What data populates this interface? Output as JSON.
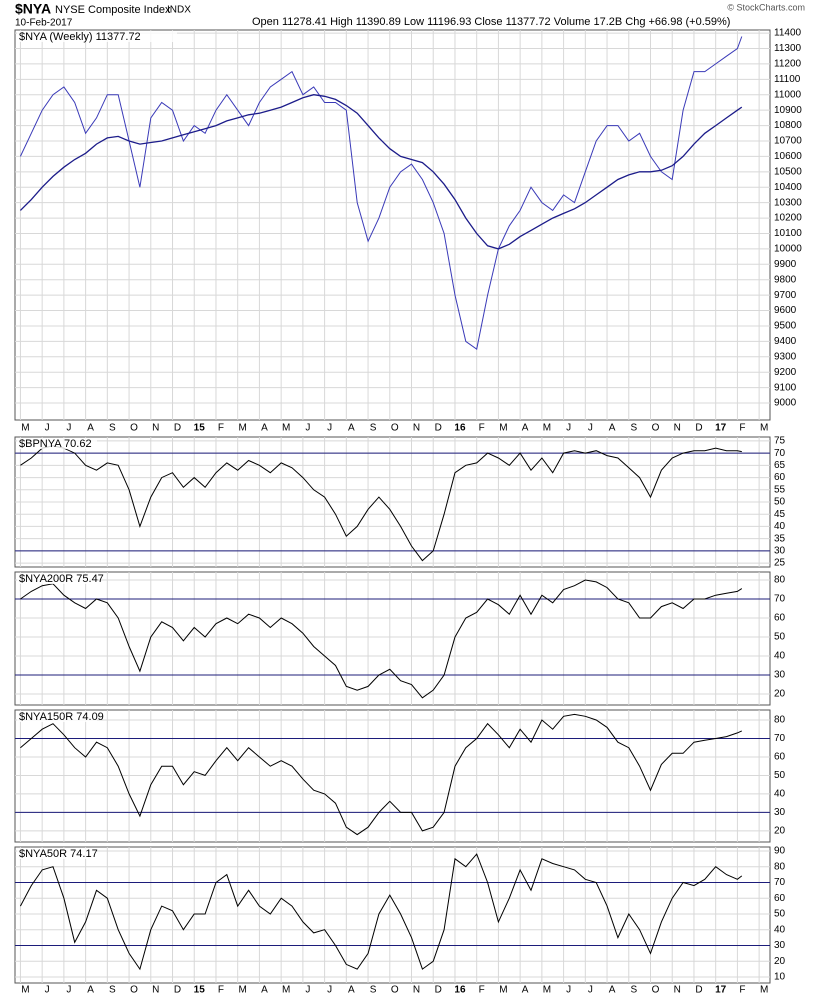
{
  "header": {
    "symbol": "$NYA",
    "name": "NYSE Composite Index",
    "exchange": "INDX",
    "date": "10-Feb-2017",
    "quote": "Open 11278.41  High 11390.89  Low 11196.93  Close 11377.72  Volume 17.2B  Chg +66.98 (+0.59%)",
    "credit": "© StockCharts.com"
  },
  "chart_data": [
    {
      "type": "line",
      "title": "$NYA (Weekly) 11377.72",
      "x": [
        0,
        0.5,
        1,
        1.5,
        2,
        2.5,
        3,
        3.5,
        4,
        4.5,
        5,
        5.5,
        6,
        6.5,
        7,
        7.5,
        8,
        8.5,
        9,
        9.5,
        10,
        10.5,
        11,
        11.5,
        12,
        12.5,
        13,
        13.5,
        14,
        14.5,
        15,
        15.5,
        16,
        16.5,
        17,
        17.5,
        18,
        18.5,
        19,
        19.5,
        20,
        20.5,
        21,
        21.5,
        22,
        22.5,
        23,
        23.5,
        24,
        24.5,
        25,
        25.5,
        26,
        26.5,
        27,
        27.5,
        28,
        28.5,
        29,
        29.5,
        30,
        30.5,
        31,
        31.5,
        32,
        32.5,
        33,
        33.2
      ],
      "series": [
        {
          "name": "Close",
          "color": "#3a3ab8",
          "values": [
            10600,
            10750,
            10900,
            11000,
            11050,
            10950,
            10750,
            10850,
            11000,
            11000,
            10700,
            10400,
            10850,
            10950,
            10900,
            10700,
            10800,
            10750,
            10900,
            11000,
            10900,
            10800,
            10950,
            11050,
            11100,
            11150,
            11000,
            11050,
            10950,
            10950,
            10900,
            10300,
            10050,
            10200,
            10400,
            10500,
            10550,
            10450,
            10300,
            10100,
            9700,
            9400,
            9350,
            9700,
            10000,
            10150,
            10250,
            10400,
            10300,
            10250,
            10350,
            10300,
            10500,
            10700,
            10800,
            10800,
            10700,
            10750,
            10600,
            10500,
            10450,
            10900,
            11150,
            11150,
            11200,
            11250,
            11300,
            11377.72
          ]
        },
        {
          "name": "MA(40)",
          "color": "#1c1c8a",
          "values": [
            10250,
            10320,
            10400,
            10470,
            10530,
            10580,
            10620,
            10680,
            10720,
            10730,
            10700,
            10680,
            10690,
            10700,
            10720,
            10740,
            10760,
            10780,
            10800,
            10830,
            10850,
            10870,
            10880,
            10900,
            10920,
            10950,
            10980,
            11000,
            10990,
            10970,
            10930,
            10880,
            10800,
            10720,
            10650,
            10600,
            10580,
            10560,
            10500,
            10420,
            10320,
            10200,
            10100,
            10020,
            10000,
            10030,
            10080,
            10120,
            10160,
            10200,
            10230,
            10260,
            10300,
            10350,
            10400,
            10450,
            10480,
            10500,
            10500,
            10510,
            10540,
            10600,
            10680,
            10750,
            10800,
            10850,
            10900,
            10920
          ]
        }
      ],
      "xlim": [
        -0.25,
        34.5
      ],
      "ylim": [
        8890,
        11420
      ],
      "yticks": [
        9000,
        9100,
        9200,
        9300,
        9400,
        9500,
        9600,
        9700,
        9800,
        9900,
        10000,
        10100,
        10200,
        10300,
        10400,
        10500,
        10600,
        10700,
        10800,
        10900,
        11000,
        11100,
        11200,
        11300,
        11400
      ],
      "xticks": [
        {
          "value": 0,
          "label": "M"
        },
        {
          "value": 1,
          "label": "J"
        },
        {
          "value": 2,
          "label": "J"
        },
        {
          "value": 3,
          "label": "A"
        },
        {
          "value": 4,
          "label": "S"
        },
        {
          "value": 5,
          "label": "O"
        },
        {
          "value": 6,
          "label": "N"
        },
        {
          "value": 7,
          "label": "D"
        },
        {
          "value": 8,
          "label": "15"
        },
        {
          "value": 9,
          "label": "F"
        },
        {
          "value": 10,
          "label": "M"
        },
        {
          "value": 11,
          "label": "A"
        },
        {
          "value": 12,
          "label": "M"
        },
        {
          "value": 13,
          "label": "J"
        },
        {
          "value": 14,
          "label": "J"
        },
        {
          "value": 15,
          "label": "A"
        },
        {
          "value": 16,
          "label": "S"
        },
        {
          "value": 17,
          "label": "O"
        },
        {
          "value": 18,
          "label": "N"
        },
        {
          "value": 19,
          "label": "D"
        },
        {
          "value": 20,
          "label": "16"
        },
        {
          "value": 21,
          "label": "F"
        },
        {
          "value": 22,
          "label": "M"
        },
        {
          "value": 23,
          "label": "A"
        },
        {
          "value": 24,
          "label": "M"
        },
        {
          "value": 25,
          "label": "J"
        },
        {
          "value": 26,
          "label": "J"
        },
        {
          "value": 27,
          "label": "A"
        },
        {
          "value": 28,
          "label": "S"
        },
        {
          "value": 29,
          "label": "O"
        },
        {
          "value": 30,
          "label": "N"
        },
        {
          "value": 31,
          "label": "D"
        },
        {
          "value": 32,
          "label": "17"
        },
        {
          "value": 33,
          "label": "F"
        },
        {
          "value": 34,
          "label": "M"
        }
      ],
      "grid": true
    },
    {
      "type": "line",
      "title": "$BPNYA 70.62",
      "x": [
        0,
        0.5,
        1,
        1.5,
        2,
        2.5,
        3,
        3.5,
        4,
        4.5,
        5,
        5.5,
        6,
        6.5,
        7,
        7.5,
        8,
        8.5,
        9,
        9.5,
        10,
        10.5,
        11,
        11.5,
        12,
        12.5,
        13,
        13.5,
        14,
        14.5,
        15,
        15.5,
        16,
        16.5,
        17,
        17.5,
        18,
        18.5,
        19,
        19.5,
        20,
        20.5,
        21,
        21.5,
        22,
        22.5,
        23,
        23.5,
        24,
        24.5,
        25,
        25.5,
        26,
        26.5,
        27,
        27.5,
        28,
        28.5,
        29,
        29.5,
        30,
        30.5,
        31,
        31.5,
        32,
        32.5,
        33,
        33.2
      ],
      "series": [
        {
          "name": "$BPNYA",
          "color": "#000000",
          "values": [
            65,
            68,
            72,
            73,
            72,
            70,
            65,
            63,
            66,
            65,
            55,
            40,
            52,
            60,
            62,
            56,
            60,
            56,
            62,
            66,
            63,
            67,
            65,
            62,
            66,
            64,
            60,
            55,
            52,
            45,
            36,
            40,
            47,
            52,
            47,
            40,
            32,
            26,
            30,
            45,
            62,
            65,
            66,
            70,
            68,
            65,
            70,
            63,
            68,
            62,
            70,
            71,
            70,
            71,
            69,
            68,
            64,
            60,
            52,
            63,
            68,
            70,
            71,
            71,
            72,
            71,
            71,
            70.62
          ]
        }
      ],
      "xlim": [
        -0.25,
        34.5
      ],
      "ylim": [
        23.4,
        76.6
      ],
      "yticks": [
        25,
        30,
        35,
        40,
        45,
        50,
        55,
        60,
        65,
        70,
        75
      ],
      "reference_lines": [
        70,
        30
      ],
      "grid": true
    },
    {
      "type": "line",
      "title": "$NYA200R 75.47",
      "x": [
        0,
        0.5,
        1,
        1.5,
        2,
        2.5,
        3,
        3.5,
        4,
        4.5,
        5,
        5.5,
        6,
        6.5,
        7,
        7.5,
        8,
        8.5,
        9,
        9.5,
        10,
        10.5,
        11,
        11.5,
        12,
        12.5,
        13,
        13.5,
        14,
        14.5,
        15,
        15.5,
        16,
        16.5,
        17,
        17.5,
        18,
        18.5,
        19,
        19.5,
        20,
        20.5,
        21,
        21.5,
        22,
        22.5,
        23,
        23.5,
        24,
        24.5,
        25,
        25.5,
        26,
        26.5,
        27,
        27.5,
        28,
        28.5,
        29,
        29.5,
        30,
        30.5,
        31,
        31.5,
        32,
        32.5,
        33,
        33.2
      ],
      "series": [
        {
          "name": "$NYA200R",
          "color": "#000000",
          "values": [
            70,
            74,
            77,
            78,
            72,
            68,
            65,
            70,
            68,
            60,
            45,
            32,
            50,
            58,
            55,
            48,
            55,
            50,
            57,
            60,
            57,
            62,
            60,
            55,
            60,
            57,
            52,
            45,
            40,
            35,
            24,
            22,
            24,
            30,
            33,
            27,
            25,
            18,
            22,
            30,
            50,
            60,
            63,
            70,
            67,
            62,
            72,
            62,
            72,
            68,
            75,
            77,
            80,
            79,
            76,
            70,
            68,
            60,
            60,
            66,
            68,
            65,
            70,
            70,
            72,
            73,
            74,
            75.47
          ]
        }
      ],
      "xlim": [
        -0.25,
        34.5
      ],
      "ylim": [
        14.2,
        84.2
      ],
      "yticks": [
        20,
        30,
        40,
        50,
        60,
        70,
        80
      ],
      "reference_lines": [
        70,
        30
      ],
      "grid": true
    },
    {
      "type": "line",
      "title": "$NYA150R 74.09",
      "x": [
        0,
        0.5,
        1,
        1.5,
        2,
        2.5,
        3,
        3.5,
        4,
        4.5,
        5,
        5.5,
        6,
        6.5,
        7,
        7.5,
        8,
        8.5,
        9,
        9.5,
        10,
        10.5,
        11,
        11.5,
        12,
        12.5,
        13,
        13.5,
        14,
        14.5,
        15,
        15.5,
        16,
        16.5,
        17,
        17.5,
        18,
        18.5,
        19,
        19.5,
        20,
        20.5,
        21,
        21.5,
        22,
        22.5,
        23,
        23.5,
        24,
        24.5,
        25,
        25.5,
        26,
        26.5,
        27,
        27.5,
        28,
        28.5,
        29,
        29.5,
        30,
        30.5,
        31,
        31.5,
        32,
        32.5,
        33,
        33.2
      ],
      "series": [
        {
          "name": "$NYA150R",
          "color": "#000000",
          "values": [
            65,
            70,
            75,
            78,
            72,
            65,
            60,
            68,
            65,
            55,
            40,
            28,
            45,
            55,
            55,
            45,
            52,
            50,
            58,
            65,
            58,
            65,
            60,
            55,
            58,
            55,
            48,
            42,
            40,
            35,
            22,
            18,
            22,
            30,
            36,
            30,
            30,
            20,
            22,
            30,
            55,
            65,
            70,
            78,
            72,
            65,
            75,
            68,
            80,
            75,
            82,
            83,
            82,
            80,
            76,
            68,
            65,
            55,
            42,
            56,
            62,
            62,
            68,
            69,
            70,
            71,
            73,
            74.09
          ]
        }
      ],
      "xlim": [
        -0.25,
        34.5
      ],
      "ylim": [
        14.0,
        85.4
      ],
      "yticks": [
        20,
        30,
        40,
        50,
        60,
        70,
        80
      ],
      "reference_lines": [
        70,
        30
      ],
      "grid": true
    },
    {
      "type": "line",
      "title": "$NYA50R 74.17",
      "x": [
        0,
        0.5,
        1,
        1.5,
        2,
        2.5,
        3,
        3.5,
        4,
        4.5,
        5,
        5.5,
        6,
        6.5,
        7,
        7.5,
        8,
        8.5,
        9,
        9.5,
        10,
        10.5,
        11,
        11.5,
        12,
        12.5,
        13,
        13.5,
        14,
        14.5,
        15,
        15.5,
        16,
        16.5,
        17,
        17.5,
        18,
        18.5,
        19,
        19.5,
        20,
        20.5,
        21,
        21.5,
        22,
        22.5,
        23,
        23.5,
        24,
        24.5,
        25,
        25.5,
        26,
        26.5,
        27,
        27.5,
        28,
        28.5,
        29,
        29.5,
        30,
        30.5,
        31,
        31.5,
        32,
        32.5,
        33,
        33.2
      ],
      "series": [
        {
          "name": "$NYA50R",
          "color": "#000000",
          "values": [
            55,
            68,
            78,
            80,
            60,
            32,
            45,
            65,
            60,
            40,
            25,
            15,
            40,
            55,
            52,
            40,
            50,
            50,
            70,
            75,
            55,
            65,
            55,
            50,
            60,
            55,
            45,
            38,
            40,
            30,
            18,
            15,
            25,
            50,
            62,
            50,
            35,
            15,
            20,
            40,
            85,
            80,
            88,
            70,
            45,
            60,
            78,
            65,
            85,
            82,
            80,
            78,
            72,
            70,
            55,
            35,
            50,
            40,
            25,
            45,
            60,
            70,
            68,
            72,
            80,
            75,
            72,
            74.17
          ]
        }
      ],
      "xlim": [
        -0.25,
        34.5
      ],
      "ylim": [
        6.2,
        92.5
      ],
      "yticks": [
        10,
        20,
        30,
        40,
        50,
        60,
        70,
        80,
        90
      ],
      "reference_lines": [
        70,
        30
      ],
      "grid": true,
      "xticks": [
        {
          "value": 0,
          "label": "M"
        },
        {
          "value": 1,
          "label": "J"
        },
        {
          "value": 2,
          "label": "J"
        },
        {
          "value": 3,
          "label": "A"
        },
        {
          "value": 4,
          "label": "S"
        },
        {
          "value": 5,
          "label": "O"
        },
        {
          "value": 6,
          "label": "N"
        },
        {
          "value": 7,
          "label": "D"
        },
        {
          "value": 8,
          "label": "15"
        },
        {
          "value": 9,
          "label": "F"
        },
        {
          "value": 10,
          "label": "M"
        },
        {
          "value": 11,
          "label": "A"
        },
        {
          "value": 12,
          "label": "M"
        },
        {
          "value": 13,
          "label": "J"
        },
        {
          "value": 14,
          "label": "J"
        },
        {
          "value": 15,
          "label": "A"
        },
        {
          "value": 16,
          "label": "S"
        },
        {
          "value": 17,
          "label": "O"
        },
        {
          "value": 18,
          "label": "N"
        },
        {
          "value": 19,
          "label": "D"
        },
        {
          "value": 20,
          "label": "16"
        },
        {
          "value": 21,
          "label": "F"
        },
        {
          "value": 22,
          "label": "M"
        },
        {
          "value": 23,
          "label": "A"
        },
        {
          "value": 24,
          "label": "M"
        },
        {
          "value": 25,
          "label": "J"
        },
        {
          "value": 26,
          "label": "J"
        },
        {
          "value": 27,
          "label": "A"
        },
        {
          "value": 28,
          "label": "S"
        },
        {
          "value": 29,
          "label": "O"
        },
        {
          "value": 30,
          "label": "N"
        },
        {
          "value": 31,
          "label": "D"
        },
        {
          "value": 32,
          "label": "17"
        },
        {
          "value": 33,
          "label": "F"
        },
        {
          "value": 34,
          "label": "M"
        }
      ]
    }
  ]
}
